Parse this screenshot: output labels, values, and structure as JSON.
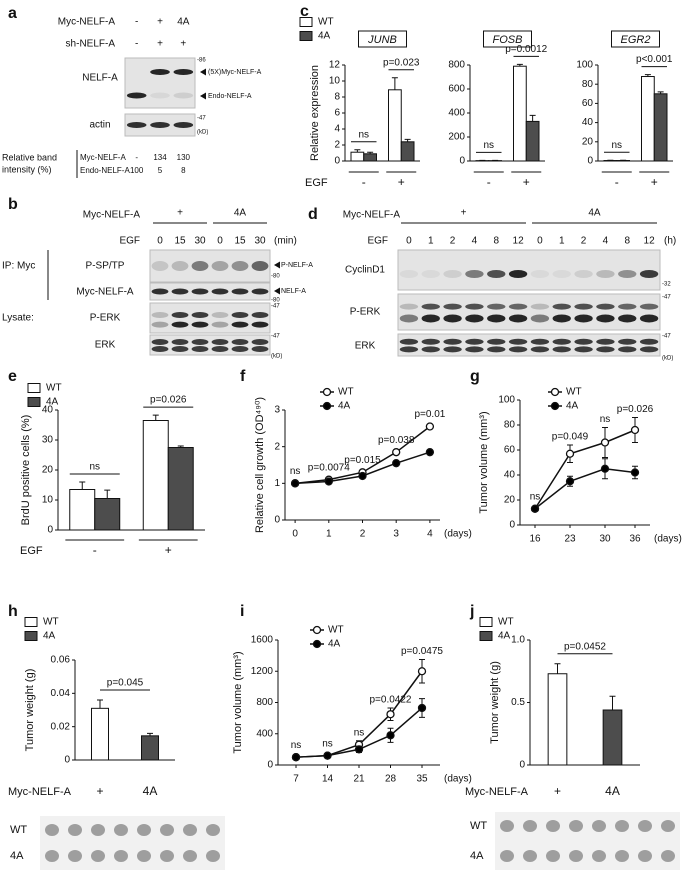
{
  "panels": [
    "a",
    "b",
    "c",
    "d",
    "e",
    "f",
    "g",
    "h",
    "i",
    "j"
  ],
  "blots": {
    "a": {
      "header": [
        {
          "name": "Myc-NELF-A",
          "lanes": [
            "-",
            "+",
            "4A"
          ]
        },
        {
          "name": "sh-NELF-A",
          "lanes": [
            "-",
            "+",
            "+"
          ]
        }
      ],
      "rows": [
        "NELF-A",
        "actin"
      ],
      "arrows": [
        "(5X)Myc-NELF-A",
        "Endo-NELF-A"
      ],
      "markers": [
        "-86",
        "-47",
        "(kD)"
      ],
      "table_label": [
        "Relative band",
        "intensity (%)"
      ],
      "table": [
        {
          "name": "Myc-NELF-A",
          "values": [
            "-",
            134,
            130
          ]
        },
        {
          "name": "Endo-NELF-A",
          "values": [
            100,
            5,
            8
          ]
        }
      ]
    },
    "b": {
      "group_name": "Myc-NELF-A",
      "groups": [
        "+",
        "4A"
      ],
      "time_name": "EGF",
      "times": [
        0,
        15,
        30,
        0,
        15,
        30
      ],
      "time_unit": "(min)",
      "ip": "IP: Myc",
      "lysate": "Lysate:",
      "rows": [
        "P-SP/TP",
        "Myc-NELF-A",
        "P-ERK",
        "ERK"
      ],
      "arrows": [
        "P-NELF-A",
        "NELF-A"
      ],
      "markers": [
        "-80",
        "-80",
        "-47",
        "-47",
        "(kD)"
      ]
    },
    "d": {
      "group_name": "Myc-NELF-A",
      "groups": [
        "+",
        "4A"
      ],
      "time_name": "EGF",
      "times": [
        0,
        1,
        2,
        4,
        8,
        12,
        0,
        1,
        2,
        4,
        8,
        12
      ],
      "time_unit": "(h)",
      "rows": [
        "CyclinD1",
        "P-ERK",
        "ERK"
      ],
      "markers": [
        "-32",
        "-47",
        "-47",
        "(kD)"
      ]
    }
  },
  "photos": [
    {
      "rows": [
        "WT",
        "4A"
      ]
    },
    {
      "rows": [
        "WT",
        "4A"
      ]
    }
  ],
  "chart_data": [
    {
      "type": "bar",
      "title": "JUNB",
      "ylabel": "Relative expression",
      "xlabel": "EGF",
      "categories": [
        "-",
        "+"
      ],
      "series": [
        {
          "name": "WT",
          "color": "#ffffff",
          "values": [
            1.1,
            8.9
          ],
          "errors": [
            0.3,
            1.5
          ]
        },
        {
          "name": "4A",
          "color": "#4d4d4d",
          "values": [
            0.9,
            2.4
          ],
          "errors": [
            0.2,
            0.3
          ]
        }
      ],
      "annotations": [
        "ns",
        "p=0.023"
      ],
      "ylim": [
        0,
        12
      ],
      "yticks": [
        0,
        2,
        4,
        6,
        8,
        10,
        12
      ],
      "legend": "upper left"
    },
    {
      "type": "bar",
      "title": "FOSB",
      "categories": [
        "-",
        "+"
      ],
      "series": [
        {
          "name": "WT",
          "color": "#ffffff",
          "values": [
            3,
            790
          ],
          "errors": [
            2,
            15
          ]
        },
        {
          "name": "4A",
          "color": "#4d4d4d",
          "values": [
            3,
            330
          ],
          "errors": [
            2,
            50
          ]
        }
      ],
      "annotations": [
        "ns",
        "p=0.0012"
      ],
      "ylim": [
        0,
        800
      ],
      "yticks": [
        0,
        200,
        400,
        600,
        800
      ]
    },
    {
      "type": "bar",
      "title": "EGR2",
      "categories": [
        "-",
        "+"
      ],
      "series": [
        {
          "name": "WT",
          "color": "#ffffff",
          "values": [
            0.5,
            88
          ],
          "errors": [
            0.3,
            2
          ]
        },
        {
          "name": "4A",
          "color": "#4d4d4d",
          "values": [
            0.5,
            70
          ],
          "errors": [
            0.3,
            2
          ]
        }
      ],
      "annotations": [
        "ns",
        "p<0.001"
      ],
      "ylim": [
        0,
        100
      ],
      "yticks": [
        0,
        20,
        40,
        60,
        80,
        100
      ]
    },
    {
      "type": "bar",
      "ylabel": "BrdU positive cells (%)",
      "xlabel": "EGF",
      "categories": [
        "-",
        "+"
      ],
      "series": [
        {
          "name": "WT",
          "color": "#ffffff",
          "values": [
            13.5,
            36.5
          ],
          "errors": [
            2.5,
            1.8
          ]
        },
        {
          "name": "4A",
          "color": "#4d4d4d",
          "values": [
            10.5,
            27.5
          ],
          "errors": [
            2.8,
            0.5
          ]
        }
      ],
      "annotations": [
        "ns",
        "p=0.026"
      ],
      "ylim": [
        0,
        40
      ],
      "yticks": [
        0,
        10,
        20,
        30,
        40
      ],
      "legend": "upper left"
    },
    {
      "type": "line",
      "ylabel": "Relative cell growth (OD⁴⁹⁰)",
      "xlabel": "(days)",
      "x": [
        0,
        1,
        2,
        3,
        4
      ],
      "series": [
        {
          "name": "WT",
          "color": "#ffffff",
          "values": [
            1,
            1.1,
            1.3,
            1.85,
            2.55
          ]
        },
        {
          "name": "4A",
          "color": "#000000",
          "values": [
            1,
            1.05,
            1.2,
            1.55,
            1.85
          ]
        }
      ],
      "annotations": [
        "ns",
        "p=0.0074",
        "p=0.015",
        "p=0.038",
        "p=0.01"
      ],
      "xlim": [
        -0.3,
        4.3
      ],
      "xticks": [
        0,
        1,
        2,
        3,
        4
      ],
      "ylim": [
        0,
        3
      ],
      "yticks": [
        0,
        1,
        2,
        3
      ],
      "legend": "upper left"
    },
    {
      "type": "line",
      "ylabel": "Tumor volume (mm³)",
      "xlabel": "(days)",
      "x": [
        16,
        23,
        30,
        36
      ],
      "series": [
        {
          "name": "WT",
          "color": "#ffffff",
          "values": [
            13,
            57,
            66,
            76
          ],
          "errors": [
            1.5,
            7,
            12,
            10
          ]
        },
        {
          "name": "4A",
          "color": "#000000",
          "values": [
            13,
            35,
            45,
            42
          ],
          "errors": [
            1.5,
            4,
            8,
            5
          ]
        }
      ],
      "annotations": [
        "ns",
        "p=0.049",
        "ns",
        "p=0.026"
      ],
      "xlim": [
        13,
        39
      ],
      "xticks": [
        16,
        23,
        30,
        36
      ],
      "ylim": [
        0,
        100
      ],
      "yticks": [
        0,
        20,
        40,
        60,
        80,
        100
      ],
      "legend": "upper left"
    },
    {
      "type": "bar",
      "ylabel": "Tumor weight (g)",
      "xlabel": "Myc-NELF-A",
      "categories": [
        "+",
        "4A"
      ],
      "series": [
        {
          "name": "WT",
          "color": "#ffffff",
          "values": [
            0.031,
            null
          ],
          "errors": [
            0.005,
            null
          ]
        },
        {
          "name": "4A",
          "color": "#4d4d4d",
          "values": [
            null,
            0.0145
          ],
          "errors": [
            null,
            0.0015
          ]
        }
      ],
      "comparison": "p=0.045",
      "ylim": [
        0,
        0.06
      ],
      "yticks": [
        0,
        0.02,
        0.04,
        0.06
      ],
      "legend": "upper left"
    },
    {
      "type": "line",
      "ylabel": "Tumor volume (mm³)",
      "xlabel": "(days)",
      "x": [
        7,
        14,
        21,
        28,
        35
      ],
      "series": [
        {
          "name": "WT",
          "color": "#ffffff",
          "values": [
            100,
            120,
            260,
            650,
            1200
          ],
          "errors": [
            10,
            15,
            50,
            80,
            150
          ]
        },
        {
          "name": "4A",
          "color": "#000000",
          "values": [
            100,
            120,
            200,
            380,
            730
          ],
          "errors": [
            10,
            15,
            40,
            90,
            120
          ]
        }
      ],
      "annotations": [
        "ns",
        "ns",
        "ns",
        "p=0.0422",
        "p=0.0475"
      ],
      "xlim": [
        3,
        39
      ],
      "xticks": [
        7,
        14,
        21,
        28,
        35
      ],
      "ylim": [
        0,
        1600
      ],
      "yticks": [
        0,
        400,
        800,
        1200,
        1600
      ],
      "legend": "upper left"
    },
    {
      "type": "bar",
      "ylabel": "Tumor weight (g)",
      "xlabel": "Myc-NELF-A",
      "categories": [
        "+",
        "4A"
      ],
      "series": [
        {
          "name": "WT",
          "color": "#ffffff",
          "values": [
            0.73,
            null
          ],
          "errors": [
            0.08,
            null
          ]
        },
        {
          "name": "4A",
          "color": "#4d4d4d",
          "values": [
            null,
            0.44
          ],
          "errors": [
            null,
            0.11
          ]
        }
      ],
      "comparison": "p=0.0452",
      "ylim": [
        0,
        1
      ],
      "yticks": [
        0,
        0.5,
        {
          "value": 1,
          "label": "1.0"
        }
      ],
      "legend": "upper left"
    }
  ]
}
